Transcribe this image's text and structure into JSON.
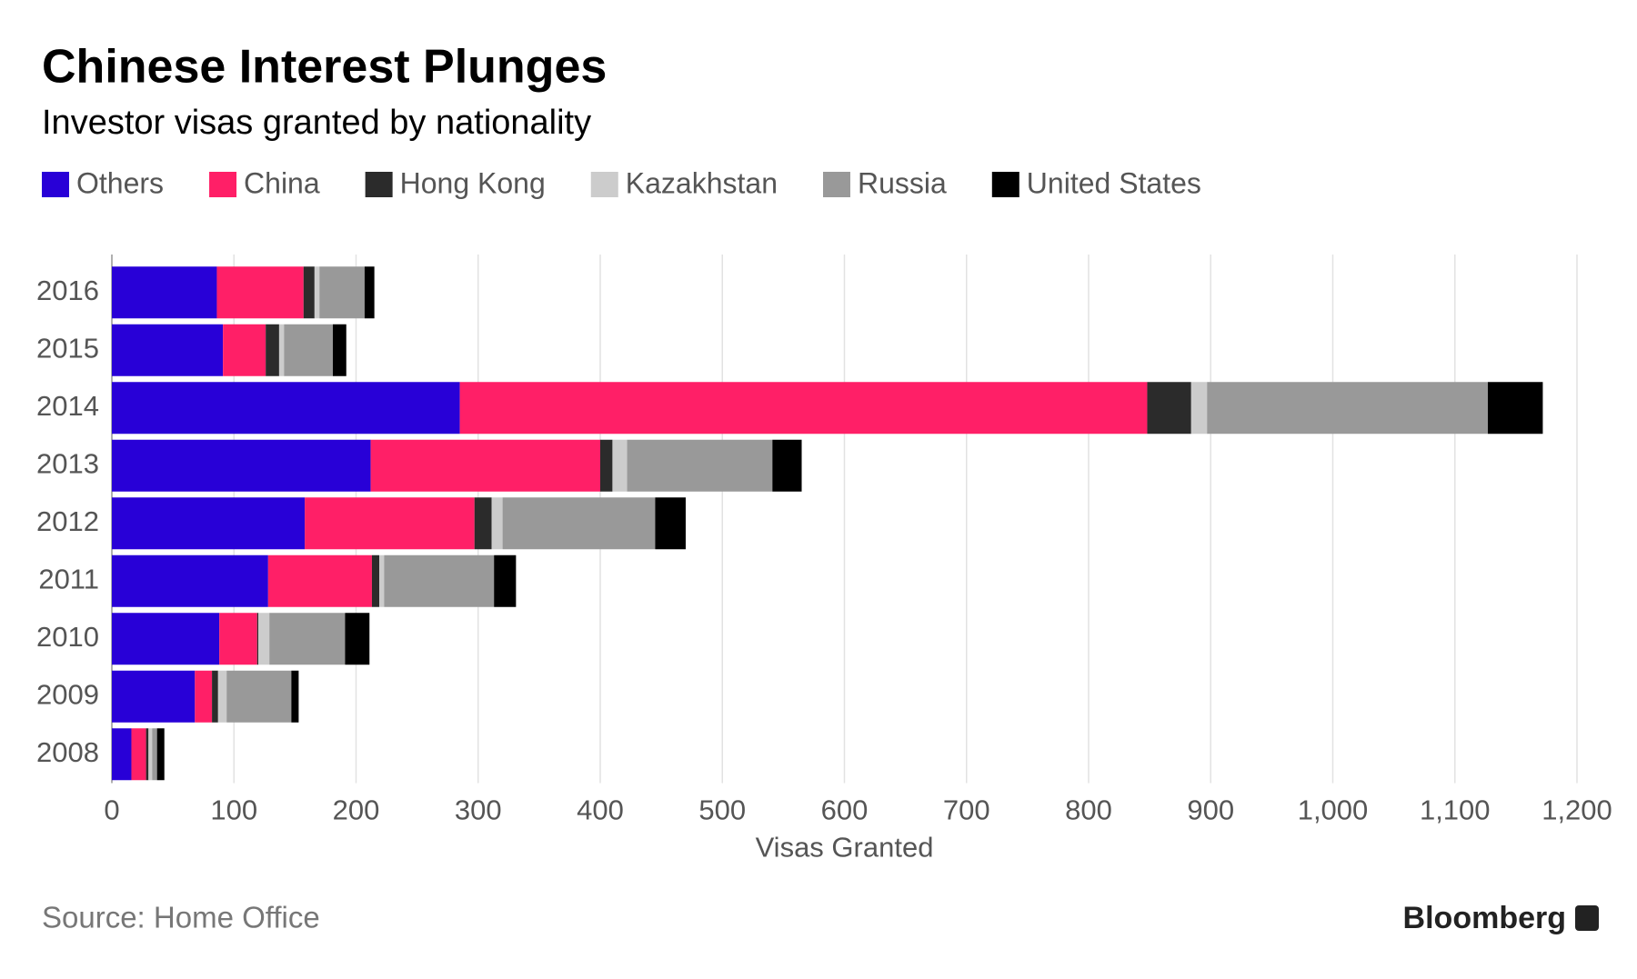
{
  "chart_data": {
    "type": "stacked-bar-horizontal",
    "title": "Chinese Interest Plunges",
    "subtitle": "Investor visas granted by nationality",
    "x_label": "Visas Granted",
    "source": "Source: Home Office",
    "brand": "Bloomberg",
    "categories": [
      "2016",
      "2015",
      "2014",
      "2013",
      "2012",
      "2011",
      "2010",
      "2009",
      "2008"
    ],
    "series": [
      {
        "name": "Others",
        "color": "#2800d7",
        "values": [
          86,
          91,
          285,
          212,
          158,
          128,
          88,
          68,
          16
        ]
      },
      {
        "name": "China",
        "color": "#ff1f67",
        "values": [
          71,
          35,
          563,
          188,
          139,
          85,
          31,
          14,
          12
        ]
      },
      {
        "name": "Hong Kong",
        "color": "#2b2b2b",
        "values": [
          9,
          11,
          36,
          10,
          14,
          6,
          1,
          5,
          2
        ]
      },
      {
        "name": "Kazakhstan",
        "color": "#cccccc",
        "values": [
          4,
          4,
          13,
          12,
          9,
          4,
          9,
          7,
          3
        ]
      },
      {
        "name": "Russia",
        "color": "#999999",
        "values": [
          37,
          40,
          230,
          119,
          125,
          90,
          62,
          53,
          4
        ]
      },
      {
        "name": "United States",
        "color": "#000000",
        "values": [
          8,
          11,
          45,
          24,
          25,
          18,
          20,
          6,
          6
        ]
      }
    ],
    "xlim": [
      0,
      1200
    ],
    "xticks": [
      0,
      100,
      200,
      300,
      400,
      500,
      600,
      700,
      800,
      900,
      {
        "value": 1000,
        "label": "1,000"
      },
      {
        "value": 1100,
        "label": "1,100"
      },
      {
        "value": 1200,
        "label": "1,200"
      }
    ],
    "grid": true
  }
}
